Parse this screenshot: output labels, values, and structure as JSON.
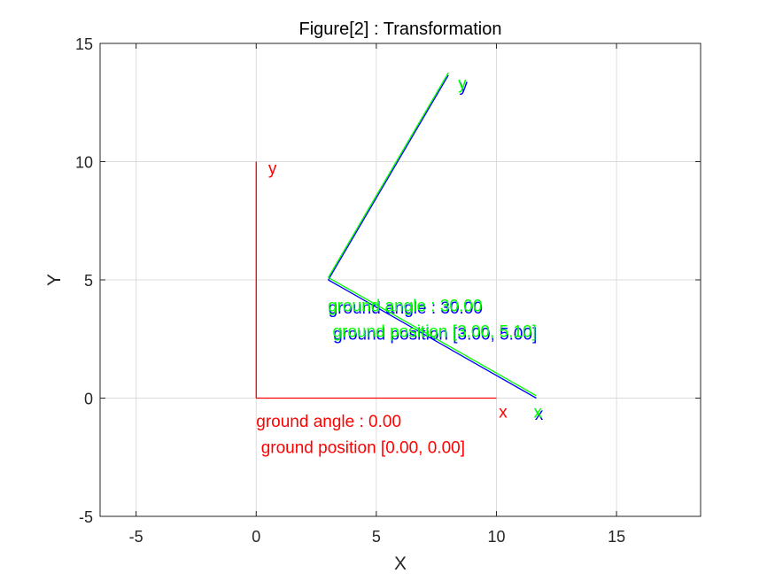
{
  "chart_data": {
    "type": "line",
    "title": "Figure[2] : Transformation",
    "xlabel": "X",
    "ylabel": "Y",
    "xlim": [
      -6.5,
      18.5
    ],
    "ylim": [
      -5,
      15
    ],
    "xticks": [
      -5,
      0,
      5,
      10,
      15
    ],
    "yticks": [
      -5,
      0,
      5,
      10,
      15
    ],
    "xtick_labels": [
      "-5",
      "0",
      "5",
      "10",
      "15"
    ],
    "ytick_labels": [
      "-5",
      "0",
      "5",
      "10",
      "15"
    ],
    "grid": true,
    "frames": [
      {
        "name": "ground-frame",
        "color": "#ff0000",
        "x_axis": {
          "x": [
            0,
            10
          ],
          "y": [
            0,
            0
          ],
          "label": "x",
          "label_pos": [
            10.1,
            -0.6
          ]
        },
        "y_axis": {
          "x": [
            0,
            0
          ],
          "y": [
            0,
            10
          ],
          "label": "y",
          "label_pos": [
            0.5,
            9.7
          ]
        },
        "angle_label": "ground angle : 0.00",
        "angle_label_pos": [
          0.0,
          -1.0
        ],
        "position_label": "ground position [0.00, 0.00]",
        "position_label_pos": [
          0.2,
          -2.1
        ]
      },
      {
        "name": "transformed-frame-blue",
        "color": "#0000ff",
        "x_axis": {
          "x": [
            3,
            11.66
          ],
          "y": [
            5,
            0
          ],
          "label": "x",
          "label_pos": [
            11.6,
            -0.7
          ]
        },
        "y_axis": {
          "x": [
            3,
            8
          ],
          "y": [
            5,
            13.66
          ],
          "label": "y",
          "label_pos": [
            8.45,
            13.2
          ]
        },
        "angle_label": "ground angle : 30.00",
        "angle_label_pos": [
          3.0,
          3.8
        ],
        "position_label": "ground position [3.00, 5.00]",
        "position_label_pos": [
          3.2,
          2.7
        ]
      },
      {
        "name": "transformed-frame-green",
        "color": "#00ff00",
        "x_axis": {
          "x": [
            3,
            11.66
          ],
          "y": [
            5.1,
            0.1
          ],
          "label": "x",
          "label_pos": [
            11.55,
            -0.6
          ]
        },
        "y_axis": {
          "x": [
            3,
            8
          ],
          "y": [
            5.1,
            13.76
          ],
          "label": "y",
          "label_pos": [
            8.4,
            13.3
          ]
        },
        "angle_label": "ground angle : 30.00",
        "angle_label_pos": [
          2.98,
          3.9
        ],
        "position_label": "ground position [3.00, 5.10]",
        "position_label_pos": [
          3.18,
          2.8
        ]
      }
    ]
  }
}
